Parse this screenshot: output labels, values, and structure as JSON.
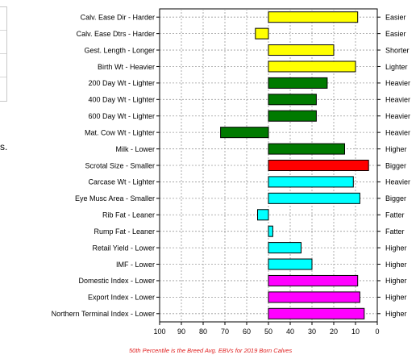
{
  "left_fragment": {
    "text": "s."
  },
  "footnote": "50th Percentile is the Breed Avg. EBVs for 2019 Born Calves",
  "chart_data": {
    "type": "bar",
    "orientation": "horizontal",
    "x_axis": {
      "ticks": [
        100,
        90,
        80,
        70,
        60,
        50,
        40,
        30,
        20,
        10,
        0
      ],
      "reversed": true,
      "lim": [
        0,
        100
      ]
    },
    "baseline": 50,
    "grid": "dotted",
    "categories": [
      "Calv. Ease Dir - Harder",
      "Calv. Ease Dtrs - Harder",
      "Gest. Length - Longer",
      "Birth Wt - Heavier",
      "200 Day Wt - Lighter",
      "400 Day Wt - Lighter",
      "600 Day Wt - Lighter",
      "Mat. Cow Wt - Lighter",
      "Milk - Lower",
      "Scrotal Size - Smaller",
      "Carcase Wt - Lighter",
      "Eye Musc Area - Smaller",
      "Rib Fat - Leaner",
      "Rump Fat - Leaner",
      "Retail Yield - Lower",
      "IMF - Lower",
      "Domestic Index - Lower",
      "Export Index - Lower",
      "Northern Terminal Index - Lower"
    ],
    "right_labels": [
      "Easier",
      "Easier",
      "Shorter",
      "Lighter",
      "Heavier",
      "Heavier",
      "Heavier",
      "Heavier",
      "Higher",
      "Bigger",
      "Heavier",
      "Bigger",
      "Fatter",
      "Fatter",
      "Higher",
      "Higher",
      "Higher",
      "Higher",
      "Higher"
    ],
    "values": [
      9,
      56,
      20,
      10,
      23,
      28,
      28,
      72,
      15,
      4,
      11,
      8,
      55,
      48,
      35,
      30,
      9,
      8,
      6
    ],
    "colors": [
      "#ffff00",
      "#ffff00",
      "#ffff00",
      "#ffff00",
      "#007a00",
      "#007a00",
      "#007a00",
      "#007a00",
      "#007a00",
      "#ff0000",
      "#00ffff",
      "#00ffff",
      "#00ffff",
      "#00ffff",
      "#00ffff",
      "#00ffff",
      "#ff00ff",
      "#ff00ff",
      "#ff00ff"
    ]
  }
}
